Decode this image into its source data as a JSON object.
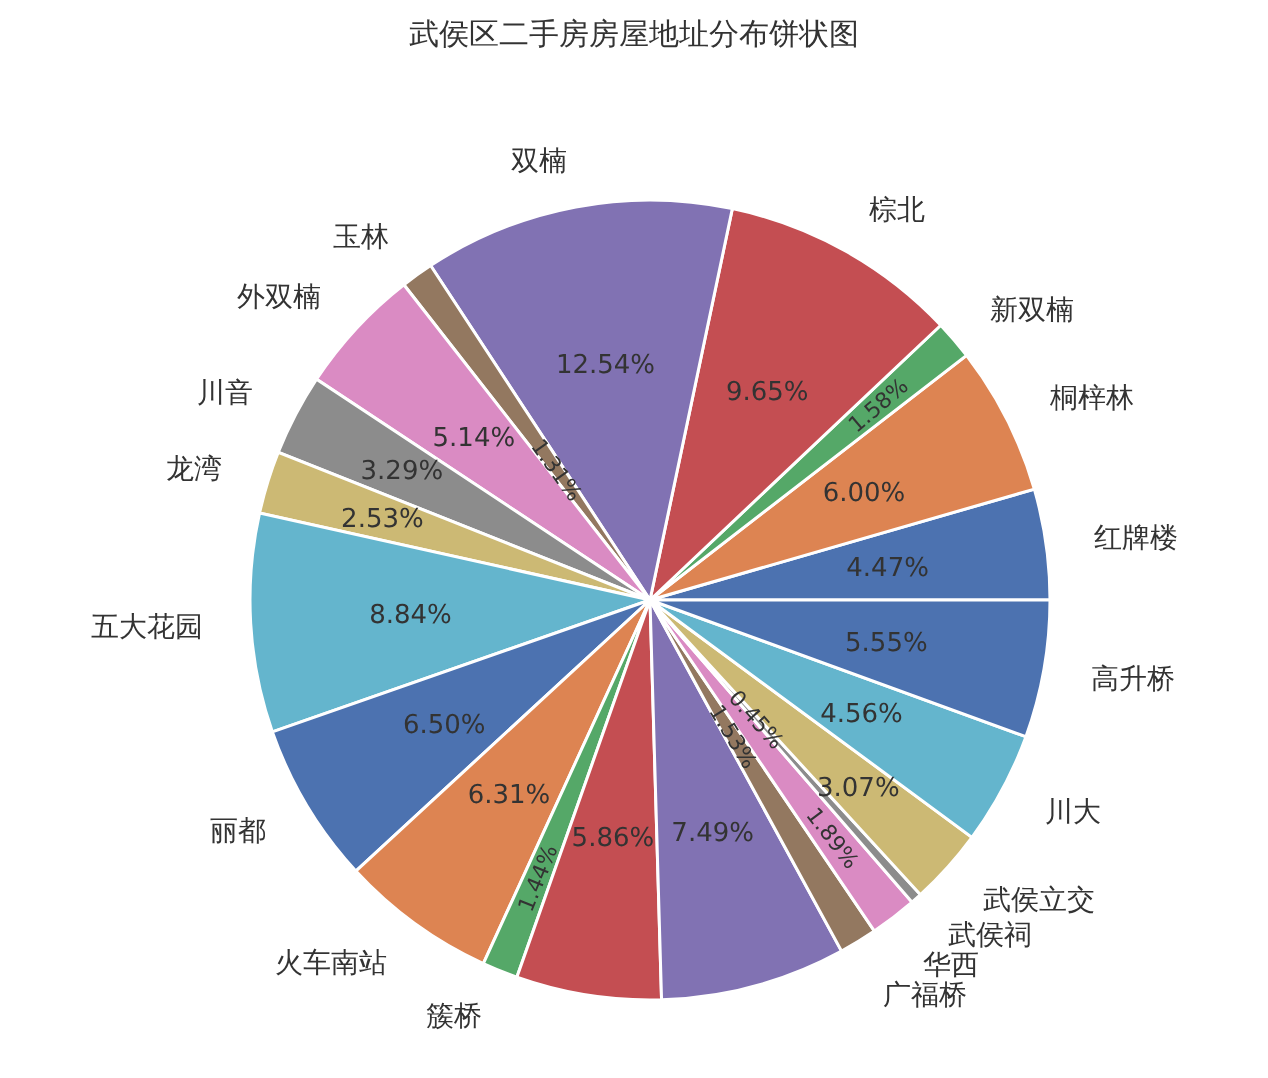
{
  "chart_data": {
    "type": "pie",
    "title": "武侯区二手房房屋地址分布饼状图",
    "categories": [
      "红牌楼",
      "桐梓林",
      "新双楠",
      "棕北",
      "双楠",
      "玉林",
      "外双楠",
      "川音",
      "龙湾",
      "五大花园",
      "丽都",
      "火车南站",
      "簇桥",
      null,
      null,
      "广福桥",
      "华西",
      "武侯祠",
      "武侯立交",
      "川大",
      "高升桥"
    ],
    "values": [
      4.47,
      6.0,
      1.58,
      9.65,
      12.54,
      1.31,
      5.14,
      3.29,
      2.53,
      8.84,
      6.5,
      6.31,
      1.44,
      5.86,
      7.49,
      1.53,
      1.89,
      0.45,
      3.07,
      4.56,
      5.55
    ],
    "colors": [
      "#4c72b0",
      "#dd8452",
      "#55a868",
      "#c44e52",
      "#8172b3",
      "#937860",
      "#da8bc3",
      "#8c8c8c",
      "#ccb974",
      "#64b5cd",
      "#4c72b0",
      "#dd8452",
      "#55a868",
      "#c44e52",
      "#8172b3",
      "#937860",
      "#da8bc3",
      "#8c8c8c",
      "#ccb974",
      "#64b5cd",
      "#4c72b0"
    ],
    "value_labels": [
      "4.47%",
      "6.00%",
      "1.58%",
      "9.65%",
      "12.54%",
      "1.31%",
      "5.14%",
      "3.29%",
      "2.53%",
      "8.84%",
      "6.50%",
      "6.31%",
      "1.44%",
      "5.86%",
      "7.49%",
      "1.53%",
      "1.89%",
      "0.45%",
      "3.07%",
      "4.56%",
      "5.55%"
    ]
  }
}
